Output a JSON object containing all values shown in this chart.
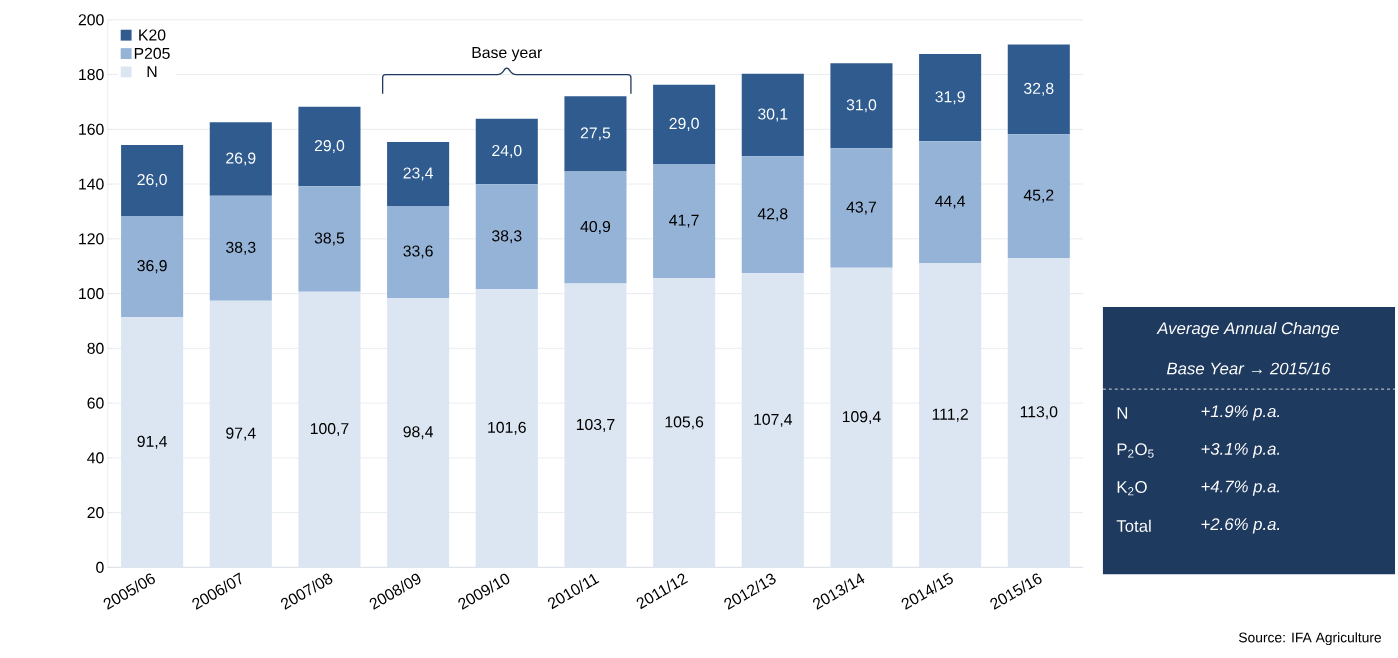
{
  "chart_data": {
    "type": "bar",
    "stacked": true,
    "categories": [
      "2005/06",
      "2006/07",
      "2007/08",
      "2008/09",
      "2009/10",
      "2010/11",
      "2011/12",
      "2012/13",
      "2013/14",
      "2014/15",
      "2015/16"
    ],
    "series": [
      {
        "name": "N",
        "color": "#dce6f2",
        "values": [
          91.4,
          97.4,
          100.7,
          98.4,
          101.6,
          103.7,
          105.6,
          107.4,
          109.4,
          111.2,
          113.0
        ],
        "value_labels": [
          "91,4",
          "97,4",
          "100,7",
          "98,4",
          "101,6",
          "103,7",
          "105,6",
          "107,4",
          "109,4",
          "111,2",
          "113,0"
        ]
      },
      {
        "name": "P205",
        "color": "#95b3d7",
        "values": [
          36.9,
          38.3,
          38.5,
          33.6,
          38.3,
          40.9,
          41.7,
          42.8,
          43.7,
          44.4,
          45.2
        ],
        "value_labels": [
          "36,9",
          "38,3",
          "38,5",
          "33,6",
          "38,3",
          "40,9",
          "41,7",
          "42,8",
          "43,7",
          "44,4",
          "45,2"
        ]
      },
      {
        "name": "K20",
        "color": "#2f5b8f",
        "values": [
          26.0,
          26.9,
          29.0,
          23.4,
          24.0,
          27.5,
          29.0,
          30.1,
          31.0,
          31.9,
          32.8
        ],
        "value_labels": [
          "26,0",
          "26,9",
          "29,0",
          "23,4",
          "24,0",
          "27,5",
          "29,0",
          "30,1",
          "31,0",
          "31,9",
          "32,8"
        ]
      }
    ],
    "ylim": [
      0,
      200
    ],
    "yticks": [
      0,
      20,
      40,
      60,
      80,
      100,
      120,
      140,
      160,
      180,
      200
    ],
    "grid": "y",
    "legend": "top left",
    "annotations": [
      "Base year",
      "Average Annual Change",
      "Base Year → 2015/16",
      "N",
      "+1.9% p.a.",
      "P$_{2}$O$_{5}$",
      "+3.1% p.a.",
      "K$_{2}$O",
      "+4.7% p.a.",
      "Total",
      "+2.6% p.a.",
      "Source: IFA Agriculture"
    ]
  }
}
